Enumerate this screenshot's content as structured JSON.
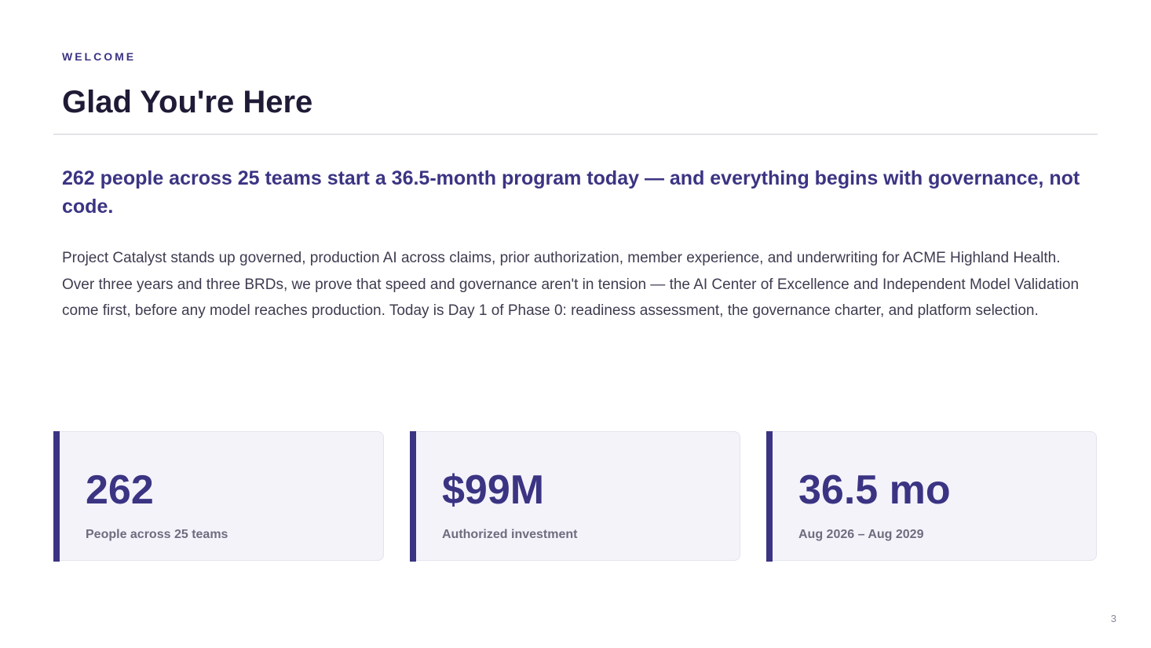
{
  "slide": {
    "eyebrow": "WELCOME",
    "title": "Glad You're Here",
    "headline": "262 people across 25 teams start a 36.5-month program today — and everything begins with governance, not code.",
    "body": "Project Catalyst stands up governed, production AI across claims, prior authorization, member experience, and underwriting for ACME Highland Health. Over three years and three BRDs, we prove that speed and governance aren't in tension — the AI Center of Excellence and Independent Model Validation come first, before any model reaches production. Today is Day 1 of Phase 0: readiness assessment, the governance charter, and platform selection.",
    "page_number": "3"
  },
  "stats": [
    {
      "value": "262",
      "label": "People across 25 teams"
    },
    {
      "value": "$99M",
      "label": "Authorized investment"
    },
    {
      "value": "36.5 mo",
      "label": "Aug 2026 – Aug 2029"
    }
  ],
  "colors": {
    "accent": "#3b3483",
    "title": "#1e1b36",
    "body": "#3e3c50",
    "card_bg": "#f4f3fa"
  }
}
